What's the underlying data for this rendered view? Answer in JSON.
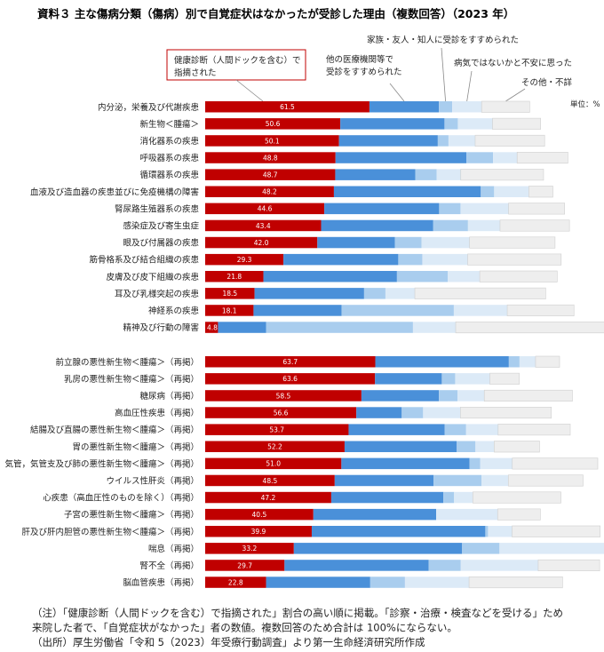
{
  "title": "資料３ 主な傷病分類（傷病）別で自覚症状はなかったが受診した理由（複数回答）（2023 年）",
  "unit": "単位：%",
  "annotations": [
    {
      "name": "annotation-health-checkup",
      "text": [
        "健康診断（人間ドックを含む）で",
        "指摘された"
      ]
    },
    {
      "name": "annotation-other-medical",
      "text": [
        "他の医療機関等で",
        "受診をすすめられた"
      ]
    },
    {
      "name": "annotation-family",
      "text": [
        "家族・友人・知人に受診をすすめられた"
      ]
    },
    {
      "name": "annotation-worried",
      "text": [
        "病気ではないかと不安に思った"
      ]
    },
    {
      "name": "annotation-other",
      "text": [
        "その他・不詳"
      ]
    }
  ],
  "notes": [
    "（注）「健康診断（人間ドックを含む）で指摘された」割合の高い順に掲載。「診察・治療・検査などを受ける」ため",
    "来院した者で、「自覚症状がなかった」者の数値。複数回答のため合計は 100%にならない。",
    "（出所）厚生労働省「令和 5（2023）年受療行動調査」より第一生命経済研究所作成"
  ],
  "colors": {
    "health_checkup": "#c00000",
    "other_medical": "#4a90d9",
    "family": "#a9cdee",
    "worried": "#dceaf7",
    "other": "#eeeeee"
  },
  "chart_data": {
    "type": "bar",
    "orientation": "horizontal",
    "stacked": true,
    "xlim": [
      0,
      148
    ],
    "series": [
      {
        "name": "健康診断（人間ドックを含む）で指摘された",
        "key": "health_checkup",
        "labeled": true
      },
      {
        "name": "他の医療機関等で受診をすすめられた",
        "key": "other_medical"
      },
      {
        "name": "家族・友人・知人に受診をすすめられた",
        "key": "family"
      },
      {
        "name": "病気ではないかと不安に思った",
        "key": "worried"
      },
      {
        "name": "その他・不詳",
        "key": "other"
      }
    ],
    "groups": [
      {
        "rows": [
          {
            "category": "内分泌，栄養及び代謝疾患",
            "values": [
              61.5,
              26,
              5,
              11,
              18
            ]
          },
          {
            "category": "新生物＜腫瘍＞",
            "values": [
              50.6,
              39,
              5,
              13,
              18
            ]
          },
          {
            "category": "消化器系の疾患",
            "values": [
              50.1,
              37,
              4,
              10,
              26
            ]
          },
          {
            "category": "呼吸器系の疾患",
            "values": [
              48.8,
              49,
              10,
              9,
              19
            ]
          },
          {
            "category": "循環器系の疾患",
            "values": [
              48.7,
              30,
              8,
              9,
              31
            ]
          },
          {
            "category": "血液及び造血器の疾患並びに免疫機構の障害",
            "values": [
              48.2,
              55,
              5,
              13,
              9
            ]
          },
          {
            "category": "腎尿路生殖器系の疾患",
            "values": [
              44.6,
              43,
              8,
              18,
              21
            ]
          },
          {
            "category": "感染症及び寄生虫症",
            "values": [
              43.4,
              42,
              13,
              12,
              26
            ]
          },
          {
            "category": "眼及び付属器の疾患",
            "values": [
              42.0,
              29,
              10,
              18,
              32
            ]
          },
          {
            "category": "筋骨格系及び結合組織の疾患",
            "values": [
              29.3,
              43,
              9,
              17,
              35
            ]
          },
          {
            "category": "皮膚及び皮下組織の疾患",
            "values": [
              21.8,
              50,
              19,
              12,
              29
            ]
          },
          {
            "category": "耳及び乳様突起の疾患",
            "values": [
              18.5,
              41,
              8,
              11,
              49
            ]
          },
          {
            "category": "神経系の疾患",
            "values": [
              18.1,
              33,
              42,
              20,
              25
            ]
          },
          {
            "category": "精神及び行動の障害",
            "values": [
              4.8,
              18,
              55,
              16,
              58
            ]
          }
        ]
      },
      {
        "rows": [
          {
            "category": "前立腺の悪性新生物＜腫瘍＞（再掲）",
            "values": [
              63.7,
              50,
              4,
              6,
              9
            ]
          },
          {
            "category": "乳房の悪性新生物＜腫瘍＞（再掲）",
            "values": [
              63.6,
              25,
              5,
              13,
              11
            ]
          },
          {
            "category": "糖尿病（再掲）",
            "values": [
              58.5,
              29,
              7,
              10,
              33
            ]
          },
          {
            "category": "高血圧性疾患（再掲）",
            "values": [
              56.6,
              17,
              8,
              14,
              34
            ]
          },
          {
            "category": "結腸及び直腸の悪性新生物＜腫瘍＞（再掲）",
            "values": [
              53.7,
              36,
              8,
              12,
              27
            ]
          },
          {
            "category": "胃の悪性新生物＜腫瘍＞（再掲）",
            "values": [
              52.2,
              42,
              7,
              7,
              17
            ]
          },
          {
            "category": "気管，気管支及び肺の悪性新生物＜腫瘍＞（再掲）",
            "values": [
              51.0,
              48,
              4,
              12,
              32
            ]
          },
          {
            "category": "ウイルス性肝炎（再掲）",
            "values": [
              48.5,
              37,
              18,
              10,
              28
            ]
          },
          {
            "category": "心疾患（高血圧性のものを除く）（再掲）",
            "values": [
              47.2,
              42,
              4,
              7,
              33
            ]
          },
          {
            "category": "子宮の悪性新生物＜腫瘍＞（再掲）",
            "values": [
              40.5,
              46,
              0,
              23,
              16
            ]
          },
          {
            "category": "肝及び肝内胆管の悪性新生物＜腫瘍＞（再掲）",
            "values": [
              39.9,
              65,
              1,
              9,
              33
            ]
          },
          {
            "category": "喘息（再掲）",
            "values": [
              33.2,
              63,
              14,
              43,
              13
            ]
          },
          {
            "category": "腎不全（再掲）",
            "values": [
              29.7,
              54,
              12,
              29,
              23
            ]
          },
          {
            "category": "脳血管疾患（再掲）",
            "values": [
              22.8,
              39,
              13,
              24,
              35
            ]
          }
        ]
      }
    ]
  }
}
